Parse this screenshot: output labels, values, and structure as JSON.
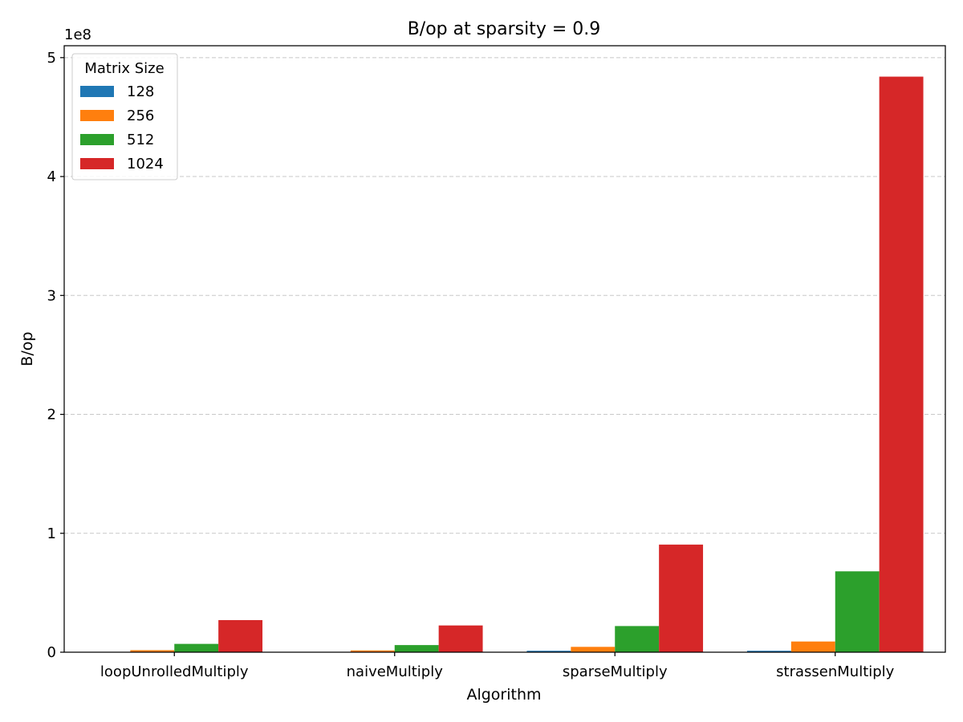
{
  "chart_data": {
    "type": "bar",
    "title": "B/op at sparsity = 0.9",
    "xlabel": "Algorithm",
    "ylabel": "B/op",
    "y_offset_label": "1e8",
    "y_scale": 100000000,
    "ylim": [
      0,
      5.1
    ],
    "yticks": [
      0,
      1,
      2,
      3,
      4,
      5
    ],
    "grid": "y-dashed",
    "legend_title": "Matrix Size",
    "legend_position": "top-left",
    "categories": [
      "loopUnrolledMultiply",
      "naiveMultiply",
      "sparseMultiply",
      "strassenMultiply"
    ],
    "series": [
      {
        "name": "128",
        "color": "#1f77b4",
        "values": [
          0.003,
          0.003,
          0.012,
          0.012
        ]
      },
      {
        "name": "256",
        "color": "#ff7f0e",
        "values": [
          0.017,
          0.015,
          0.045,
          0.09
        ]
      },
      {
        "name": "512",
        "color": "#2ca02c",
        "values": [
          0.07,
          0.06,
          0.22,
          0.68
        ]
      },
      {
        "name": "1024",
        "color": "#d62728",
        "values": [
          0.27,
          0.225,
          0.905,
          4.84
        ]
      }
    ]
  }
}
